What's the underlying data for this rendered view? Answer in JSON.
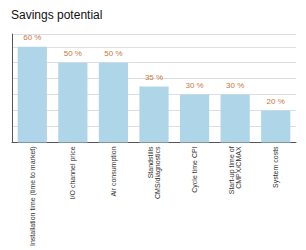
{
  "chart_data": {
    "type": "bar",
    "title": "Savings potential",
    "categories": [
      "Installation time (time to market)",
      "I/O channel price",
      "Air consumption",
      "Standstills\nCMS/diagnostics",
      "Cycle time CPI",
      "Start-up time of\nCMPX/CMAX",
      "System costs"
    ],
    "values": [
      60,
      50,
      50,
      35,
      30,
      30,
      20
    ],
    "value_labels": [
      "60 %",
      "50 %",
      "50 %",
      "35 %",
      "30 %",
      "30 %",
      "20 %"
    ],
    "data_labels": true,
    "color": "#aed6e8",
    "ylim": [
      0,
      68
    ],
    "yticks": [
      0,
      10,
      20,
      30,
      40,
      50,
      60
    ],
    "grid": true,
    "tick_labels": "x"
  }
}
